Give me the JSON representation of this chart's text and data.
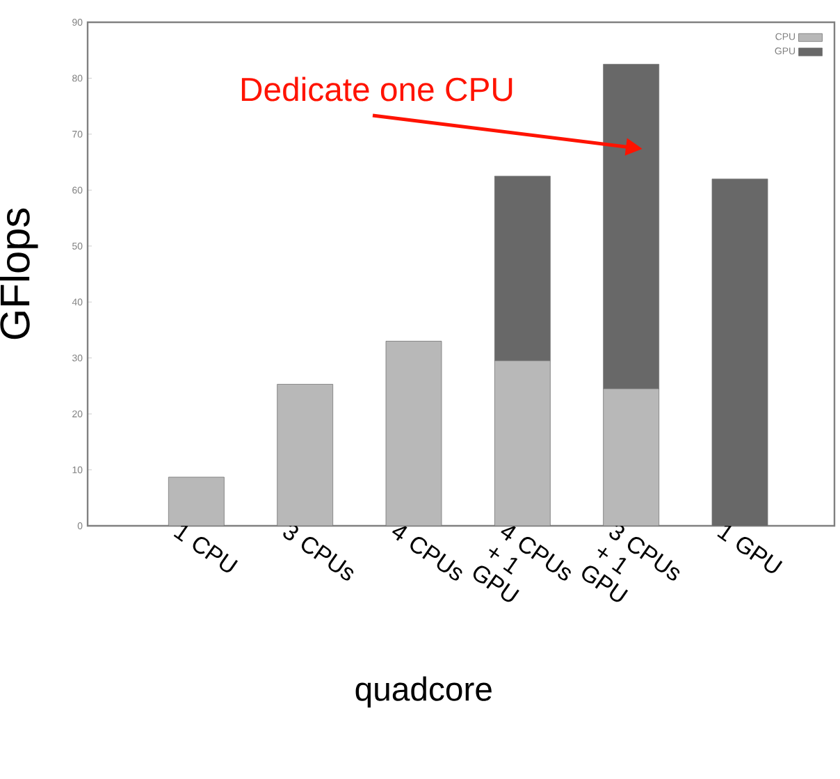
{
  "chart_data": {
    "type": "bar",
    "stacked": true,
    "ylabel": "GFlops",
    "xlabel": "quadcore",
    "categories": [
      "1 CPU",
      "3 CPUs",
      "4 CPUs",
      "4 CPUs + 1 GPU",
      "3 CPUs + 1 GPU",
      "1 GPU"
    ],
    "series": [
      {
        "name": "CPU",
        "color": "#b8b8b8",
        "values": [
          8.7,
          25.3,
          33,
          29.5,
          24.5,
          0
        ]
      },
      {
        "name": "GPU",
        "color": "#686868",
        "values": [
          0,
          0,
          0,
          33,
          58,
          62
        ]
      }
    ],
    "ylim": [
      0,
      90
    ],
    "yticks": [
      0,
      10,
      20,
      30,
      40,
      50,
      60,
      70,
      80,
      90
    ],
    "legend": "top right",
    "grid": false,
    "annotations": [
      "Dedicate one CPU"
    ]
  }
}
